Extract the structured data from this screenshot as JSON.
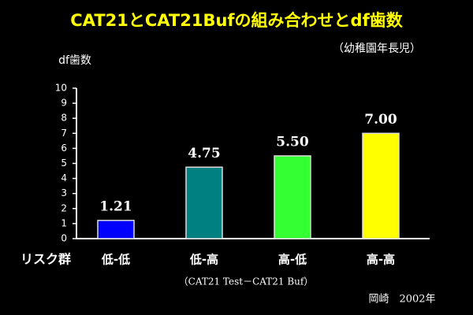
{
  "chart_data": {
    "type": "bar",
    "title": "CAT21とCAT21Bufの組み合わせとdf歯数",
    "subtitle": "（幼稚園年長児）",
    "y_label": "df歯数",
    "x_label": "リスク群",
    "categories": [
      "低-低",
      "低-高",
      "高-低",
      "高-高"
    ],
    "values": [
      1.21,
      4.75,
      5.5,
      7.0
    ],
    "value_labels": [
      "1.21",
      "4.75",
      "5.50",
      "7.00"
    ],
    "colors": [
      "#0000ff",
      "#008080",
      "#33ff33",
      "#ffff00"
    ],
    "ylim": [
      0,
      10
    ],
    "yticks": [
      0,
      1,
      2,
      3,
      4,
      5,
      6,
      7,
      8,
      9,
      10
    ],
    "note": "（CAT21 Test－CAT21 Buf）",
    "credit": "岡崎　2002年"
  }
}
